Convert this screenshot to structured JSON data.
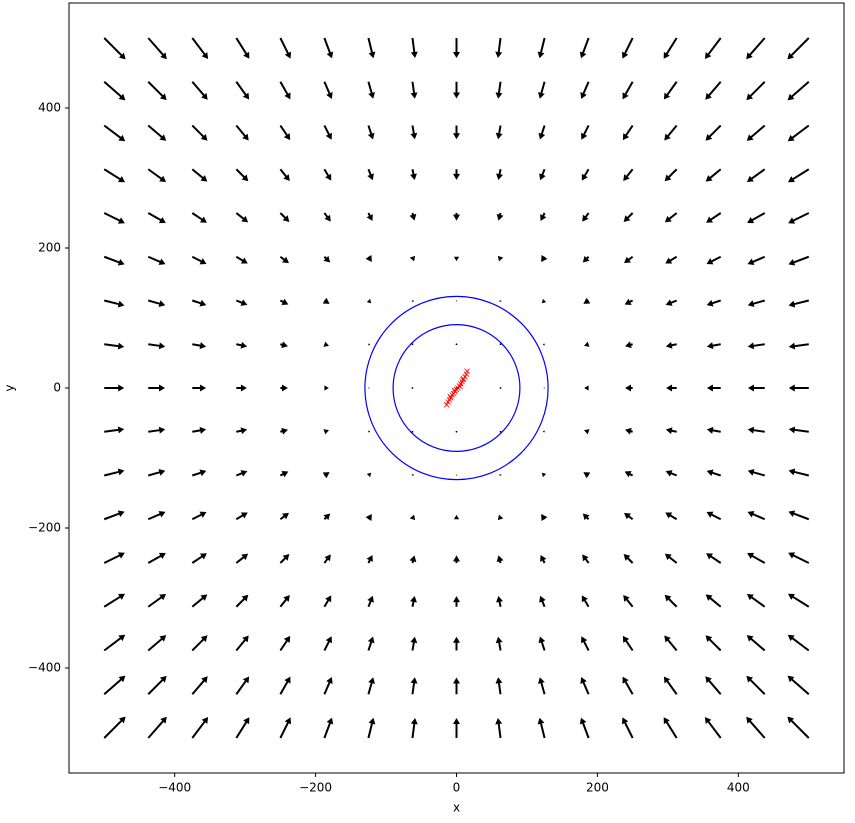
{
  "chart_data": {
    "type": "quiver",
    "xlabel": "x",
    "ylabel": "y",
    "xlim": [
      -550,
      550
    ],
    "ylim": [
      -550,
      550
    ],
    "xticks": [
      {
        "value": -400,
        "label": "−400"
      },
      {
        "value": -200,
        "label": "−200"
      },
      0,
      200,
      400
    ],
    "yticks": [
      {
        "value": -400,
        "label": "−400"
      },
      {
        "value": -200,
        "label": "−200"
      },
      0,
      200,
      400
    ],
    "color": "#000000",
    "x": [
      -500,
      -437.5,
      -375,
      -312.5,
      -250,
      -187.5,
      -125,
      -62.5,
      0,
      62.5,
      125,
      187.5,
      250,
      312.5,
      375,
      437.5,
      500
    ],
    "y": [
      500,
      437.5,
      375,
      312.5,
      250,
      187.5,
      125,
      62.5,
      0,
      -62.5,
      -125,
      -187.5,
      -250,
      -312.5,
      -375,
      -437.5,
      -500
    ],
    "u": [
      [
        10.7,
        9.3,
        7.9,
        6.5,
        5.1,
        3.8,
        2.5,
        1.3,
        0,
        -1.3,
        -2.5,
        -3.8,
        -5.1,
        -6.5,
        -7.9,
        -9.3,
        -10.7
      ],
      [
        10.6,
        9.2,
        7.7,
        6.4,
        5,
        3.7,
        2.4,
        1.2,
        0,
        -1.2,
        -2.4,
        -3.7,
        -5,
        -6.4,
        -7.7,
        -9.2,
        -10.6
      ],
      [
        10.5,
        9,
        7.6,
        6.2,
        4.9,
        3.6,
        2.3,
        1.2,
        0,
        -1.2,
        -2.3,
        -3.6,
        -4.9,
        -6.2,
        -7.6,
        -9,
        -10.5
      ],
      [
        10.4,
        8.9,
        7.5,
        6,
        4.7,
        3.4,
        2.2,
        1.1,
        0,
        -1.1,
        -2.2,
        -3.4,
        -4.7,
        -6,
        -7.5,
        -8.9,
        -10.4
      ],
      [
        10.3,
        8.8,
        7.3,
        5.9,
        4.5,
        3.2,
        2,
        1,
        0,
        -1,
        -2,
        -3.2,
        -4.5,
        -5.9,
        -7.3,
        -8.8,
        -10.3
      ],
      [
        10.2,
        8.6,
        7.1,
        5.7,
        4.3,
        2.9,
        1.7,
        0.8,
        0,
        -0.8,
        -1.7,
        -2.9,
        -4.3,
        -5.7,
        -7.1,
        -8.6,
        -10.2
      ],
      [
        10.1,
        8.5,
        7,
        5.5,
        4,
        2.6,
        1.4,
        0.4,
        0,
        -0.4,
        -1.4,
        -2.6,
        -4,
        -5.5,
        -7,
        -8.5,
        -10.1
      ],
      [
        10,
        8.5,
        6.9,
        5.4,
        3.8,
        2.3,
        0.9,
        0,
        0,
        0,
        -0.9,
        -2.3,
        -3.8,
        -5.4,
        -6.9,
        -8.5,
        -10
      ],
      [
        10,
        8.4,
        6.9,
        5.3,
        3.8,
        2.2,
        0.6,
        0,
        0,
        0,
        -0.6,
        -2.2,
        -3.8,
        -5.3,
        -6.9,
        -8.4,
        -10
      ],
      [
        10,
        8.5,
        6.9,
        5.4,
        3.8,
        2.3,
        0.9,
        0,
        0,
        0,
        -0.9,
        -2.3,
        -3.8,
        -5.4,
        -6.9,
        -8.5,
        -10
      ],
      [
        10.1,
        8.5,
        7,
        5.5,
        4,
        2.6,
        1.4,
        0.4,
        0,
        -0.4,
        -1.4,
        -2.6,
        -4,
        -5.5,
        -7,
        -8.5,
        -10.1
      ],
      [
        10.2,
        8.6,
        7.1,
        5.7,
        4.3,
        2.9,
        1.7,
        0.8,
        0,
        -0.8,
        -1.7,
        -2.9,
        -4.3,
        -5.7,
        -7.1,
        -8.6,
        -10.2
      ],
      [
        10.3,
        8.8,
        7.3,
        5.9,
        4.5,
        3.2,
        2,
        1,
        0,
        -1,
        -2,
        -3.2,
        -4.5,
        -5.9,
        -7.3,
        -8.8,
        -10.3
      ],
      [
        10.4,
        8.9,
        7.5,
        6,
        4.7,
        3.4,
        2.2,
        1.1,
        0,
        -1.1,
        -2.2,
        -3.4,
        -4.7,
        -6,
        -7.5,
        -8.9,
        -10.4
      ],
      [
        10.5,
        9,
        7.6,
        6.2,
        4.9,
        3.6,
        2.3,
        1.2,
        0,
        -1.2,
        -2.3,
        -3.6,
        -4.9,
        -6.2,
        -7.6,
        -9,
        -10.5
      ],
      [
        10.6,
        9.2,
        7.7,
        6.4,
        5,
        3.7,
        2.4,
        1.2,
        0,
        -1.2,
        -2.4,
        -3.7,
        -5,
        -6.4,
        -7.7,
        -9.2,
        -10.6
      ],
      [
        10.7,
        9.3,
        7.9,
        6.5,
        5.1,
        3.8,
        2.5,
        1.3,
        0,
        -1.3,
        -2.5,
        -3.8,
        -5.1,
        -6.5,
        -7.9,
        -9.3,
        -10.7
      ]
    ],
    "v": [
      [
        -10.7,
        -10.6,
        -10.5,
        -10.4,
        -10.3,
        -10.2,
        -10.1,
        -10,
        -10,
        -10,
        -10.1,
        -10.2,
        -10.3,
        -10.4,
        -10.5,
        -10.6,
        -10.7
      ],
      [
        -9.3,
        -9.2,
        -9,
        -8.9,
        -8.8,
        -8.6,
        -8.5,
        -8.5,
        -8.4,
        -8.5,
        -8.5,
        -8.6,
        -8.8,
        -8.9,
        -9,
        -9.2,
        -9.3
      ],
      [
        -7.9,
        -7.7,
        -7.6,
        -7.5,
        -7.3,
        -7.1,
        -7,
        -6.9,
        -6.9,
        -6.9,
        -7,
        -7.1,
        -7.3,
        -7.5,
        -7.6,
        -7.7,
        -7.9
      ],
      [
        -6.5,
        -6.4,
        -6.2,
        -6,
        -5.9,
        -5.7,
        -5.5,
        -5.4,
        -5.3,
        -5.4,
        -5.5,
        -5.7,
        -5.9,
        -6,
        -6.2,
        -6.4,
        -6.5
      ],
      [
        -5.1,
        -5,
        -4.9,
        -4.7,
        -4.5,
        -4.3,
        -4,
        -3.8,
        -3.8,
        -3.8,
        -4,
        -4.3,
        -4.5,
        -4.7,
        -4.9,
        -5,
        -5.1
      ],
      [
        -3.8,
        -3.7,
        -3.6,
        -3.4,
        -3.2,
        -2.9,
        -2.6,
        -2.3,
        -2.2,
        -2.3,
        -2.6,
        -2.9,
        -3.2,
        -3.4,
        -3.6,
        -3.7,
        -3.8
      ],
      [
        -2.5,
        -2.4,
        -2.3,
        -2.2,
        -2,
        -1.7,
        -1.4,
        -0.9,
        -0.6,
        -0.9,
        -1.4,
        -1.7,
        -2,
        -2.2,
        -2.3,
        -2.4,
        -2.5
      ],
      [
        -1.3,
        -1.2,
        -1.2,
        -1.1,
        -1,
        -0.8,
        -0.4,
        0,
        0,
        0,
        -0.4,
        -0.8,
        -1,
        -1.1,
        -1.2,
        -1.2,
        -1.3
      ],
      [
        0,
        0,
        0,
        0,
        0,
        0,
        0,
        0,
        0,
        0,
        0,
        0,
        0,
        0,
        0,
        0,
        0
      ],
      [
        1.3,
        1.2,
        1.2,
        1.1,
        1,
        0.8,
        0.4,
        0,
        0,
        0,
        0.4,
        0.8,
        1,
        1.1,
        1.2,
        1.2,
        1.3
      ],
      [
        2.5,
        2.4,
        2.3,
        2.2,
        2,
        1.7,
        1.4,
        0.9,
        0.6,
        0.9,
        1.4,
        1.7,
        2,
        2.2,
        2.3,
        2.4,
        2.5
      ],
      [
        3.8,
        3.7,
        3.6,
        3.4,
        3.2,
        2.9,
        2.6,
        2.3,
        2.2,
        2.3,
        2.6,
        2.9,
        3.2,
        3.4,
        3.6,
        3.7,
        3.8
      ],
      [
        5.1,
        5,
        4.9,
        4.7,
        4.5,
        4.3,
        4,
        3.8,
        3.8,
        3.8,
        4,
        4.3,
        4.5,
        4.7,
        4.9,
        5,
        5.1
      ],
      [
        6.5,
        6.4,
        6.2,
        6,
        5.9,
        5.7,
        5.5,
        5.4,
        5.3,
        5.4,
        5.5,
        5.7,
        5.9,
        6,
        6.2,
        6.4,
        6.5
      ],
      [
        7.9,
        7.7,
        7.6,
        7.5,
        7.3,
        7.1,
        7,
        6.9,
        6.9,
        6.9,
        7,
        7.1,
        7.3,
        7.5,
        7.6,
        7.7,
        7.9
      ],
      [
        9.3,
        9.2,
        9,
        8.9,
        8.8,
        8.6,
        8.5,
        8.5,
        8.4,
        8.5,
        8.5,
        8.6,
        8.8,
        8.9,
        9,
        9.2,
        9.3
      ],
      [
        10.7,
        10.6,
        10.5,
        10.4,
        10.3,
        10.2,
        10.1,
        10,
        10,
        10,
        10.1,
        10.2,
        10.3,
        10.4,
        10.5,
        10.6,
        10.7
      ]
    ],
    "circles": [
      {
        "cx": 0,
        "cy": 0,
        "r": 90,
        "color": "#0000ff"
      },
      {
        "cx": 0,
        "cy": 0,
        "r": 130,
        "color": "#0000ff"
      }
    ],
    "points": {
      "color": "#ff0000",
      "x": [
        -14,
        -12,
        -10,
        -8,
        -6,
        -4,
        -2,
        0,
        2,
        4,
        6,
        8,
        10,
        12,
        14,
        15,
        -3,
        5,
        9,
        -9
      ],
      "y": [
        -24,
        -20,
        -17,
        -14,
        -10,
        -8,
        -5,
        -2,
        0,
        3,
        6,
        9,
        13,
        16,
        20,
        24,
        -3,
        2,
        12,
        -12
      ]
    }
  }
}
